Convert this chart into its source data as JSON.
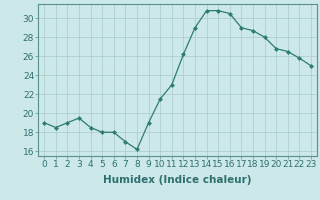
{
  "x": [
    0,
    1,
    2,
    3,
    4,
    5,
    6,
    7,
    8,
    9,
    10,
    11,
    12,
    13,
    14,
    15,
    16,
    17,
    18,
    19,
    20,
    21,
    22,
    23
  ],
  "y": [
    19.0,
    18.5,
    19.0,
    19.5,
    18.5,
    18.0,
    18.0,
    17.0,
    16.2,
    19.0,
    21.5,
    23.0,
    26.2,
    29.0,
    30.8,
    30.8,
    30.5,
    29.0,
    28.7,
    28.0,
    26.8,
    26.5,
    25.8,
    25.0
  ],
  "line_color": "#2e7d6e",
  "marker": "D",
  "marker_size": 2,
  "bg_color": "#cde8e8",
  "grid_color": "#aecece",
  "xlabel": "Humidex (Indice chaleur)",
  "ylim": [
    15.5,
    31.5
  ],
  "xlim": [
    -0.5,
    23.5
  ],
  "yticks": [
    16,
    18,
    20,
    22,
    24,
    26,
    28,
    30
  ],
  "xticks": [
    0,
    1,
    2,
    3,
    4,
    5,
    6,
    7,
    8,
    9,
    10,
    11,
    12,
    13,
    14,
    15,
    16,
    17,
    18,
    19,
    20,
    21,
    22,
    23
  ],
  "tick_label_fontsize": 6.5,
  "xlabel_fontsize": 7.5,
  "tick_color": "#2e7070",
  "spine_color": "#5a9090"
}
